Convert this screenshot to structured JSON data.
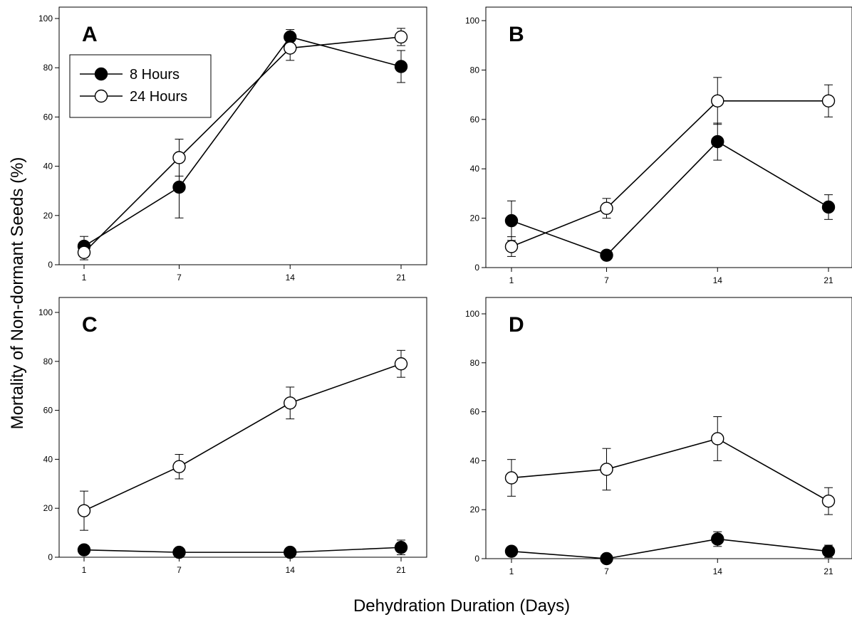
{
  "figure": {
    "ylabel": "Mortality of Non-dormant Seeds (%)",
    "xlabel": "Dehydration Duration (Days)"
  },
  "legend": {
    "entries": [
      "8 Hours",
      "24 Hours"
    ]
  },
  "chart_data": [
    {
      "type": "line",
      "panel_label": "A",
      "x": [
        1,
        7,
        14,
        21
      ],
      "xticks": [
        "1",
        "7",
        "14",
        "21"
      ],
      "ylim": [
        0,
        100
      ],
      "yticks": [
        "0",
        "20",
        "40",
        "60",
        "80",
        "100"
      ],
      "legend": "top-left",
      "grid": false,
      "series": [
        {
          "name": "8 Hours",
          "marker": "filled-circle",
          "values": [
            7.5,
            31.5,
            92.5,
            80.5
          ],
          "errors": [
            4,
            12.5,
            3,
            6.5
          ]
        },
        {
          "name": "24 Hours",
          "marker": "open-circle",
          "values": [
            5,
            43.5,
            88,
            92.5
          ],
          "errors": [
            3,
            7.5,
            5,
            3.5
          ]
        }
      ]
    },
    {
      "type": "line",
      "panel_label": "B",
      "x": [
        1,
        7,
        14,
        21
      ],
      "xticks": [
        "1",
        "7",
        "14",
        "21"
      ],
      "ylim": [
        0,
        100
      ],
      "yticks": [
        "0",
        "20",
        "40",
        "60",
        "80",
        "100"
      ],
      "grid": false,
      "series": [
        {
          "name": "8 Hours",
          "marker": "filled-circle",
          "values": [
            19,
            5,
            51,
            24.5
          ],
          "errors": [
            8,
            1,
            7.5,
            5
          ]
        },
        {
          "name": "24 Hours",
          "marker": "open-circle",
          "values": [
            8.5,
            24,
            67.5,
            67.5
          ],
          "errors": [
            4,
            4,
            9.5,
            6.5
          ]
        }
      ]
    },
    {
      "type": "line",
      "panel_label": "C",
      "x": [
        1,
        7,
        14,
        21
      ],
      "xticks": [
        "1",
        "7",
        "14",
        "21"
      ],
      "ylim": [
        0,
        100
      ],
      "yticks": [
        "0",
        "20",
        "40",
        "60",
        "80",
        "100"
      ],
      "grid": false,
      "series": [
        {
          "name": "8 Hours",
          "marker": "filled-circle",
          "values": [
            3,
            2,
            2,
            4
          ],
          "errors": [
            1,
            1,
            1,
            3
          ]
        },
        {
          "name": "24 Hours",
          "marker": "open-circle",
          "values": [
            19,
            37,
            63,
            79
          ],
          "errors": [
            8,
            5,
            6.5,
            5.5
          ]
        }
      ]
    },
    {
      "type": "line",
      "panel_label": "D",
      "x": [
        1,
        7,
        14,
        21
      ],
      "xticks": [
        "1",
        "7",
        "14",
        "21"
      ],
      "ylim": [
        0,
        100
      ],
      "yticks": [
        "0",
        "20",
        "40",
        "60",
        "80",
        "100"
      ],
      "grid": false,
      "series": [
        {
          "name": "8 Hours",
          "marker": "filled-circle",
          "values": [
            3,
            0,
            8,
            3
          ],
          "errors": [
            1,
            0.5,
            3,
            2.5
          ]
        },
        {
          "name": "24 Hours",
          "marker": "open-circle",
          "values": [
            33,
            36.5,
            49,
            23.5
          ],
          "errors": [
            7.5,
            8.5,
            9,
            5.5
          ]
        }
      ]
    }
  ]
}
